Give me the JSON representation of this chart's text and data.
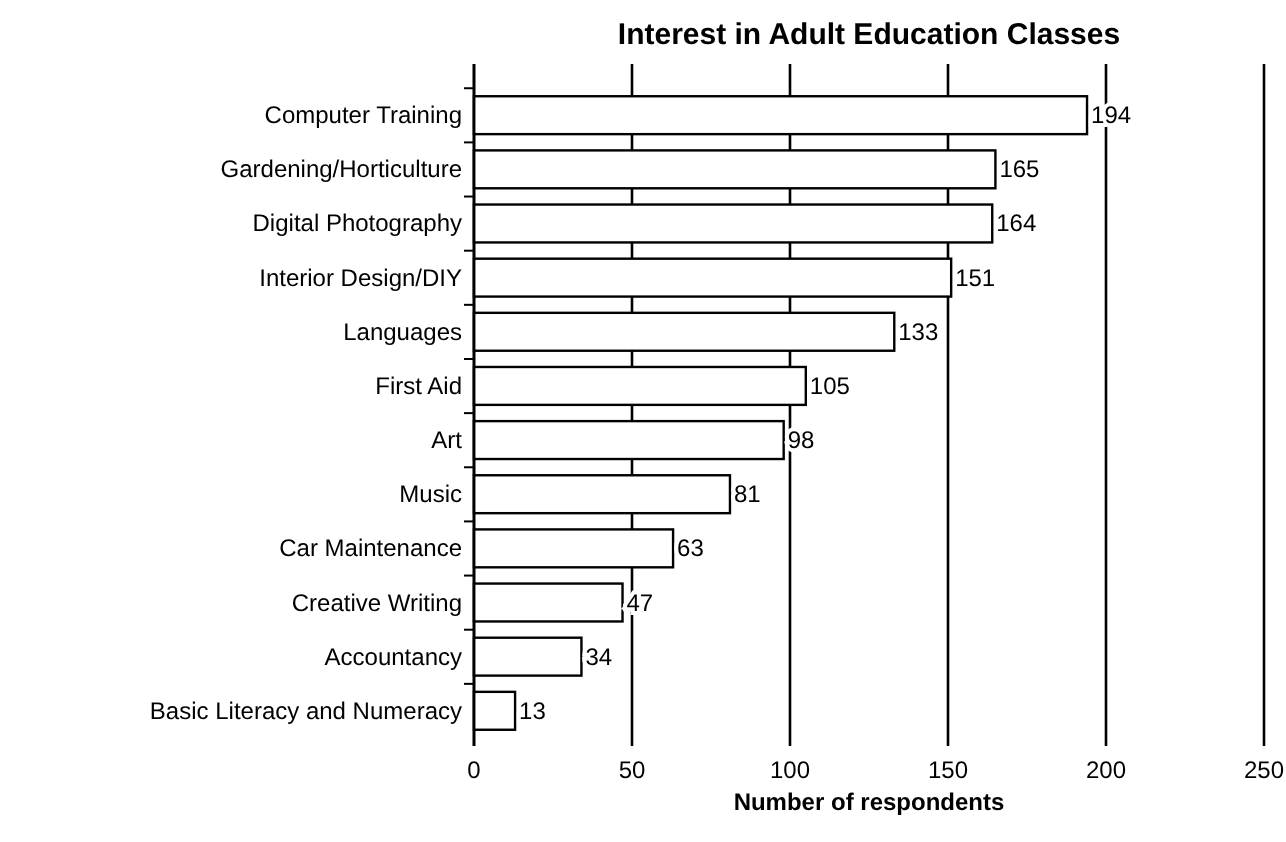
{
  "chart_data": {
    "type": "bar",
    "orientation": "horizontal",
    "title": "Interest in Adult Education Classes",
    "xlabel": "Number of respondents",
    "categories": [
      "Computer Training",
      "Gardening/Horticulture",
      "Digital Photography",
      "Interior Design/DIY",
      "Languages",
      "First Aid",
      "Art",
      "Music",
      "Car Maintenance",
      "Creative Writing",
      "Accountancy",
      "Basic Literacy and Numeracy"
    ],
    "values": [
      194,
      165,
      164,
      151,
      133,
      105,
      98,
      81,
      63,
      47,
      34,
      13
    ],
    "color": "#ffffff",
    "xlim": [
      0,
      250
    ],
    "xticks": [
      0,
      50,
      100,
      150,
      200,
      250
    ],
    "grid": "x",
    "data_labels": true
  }
}
